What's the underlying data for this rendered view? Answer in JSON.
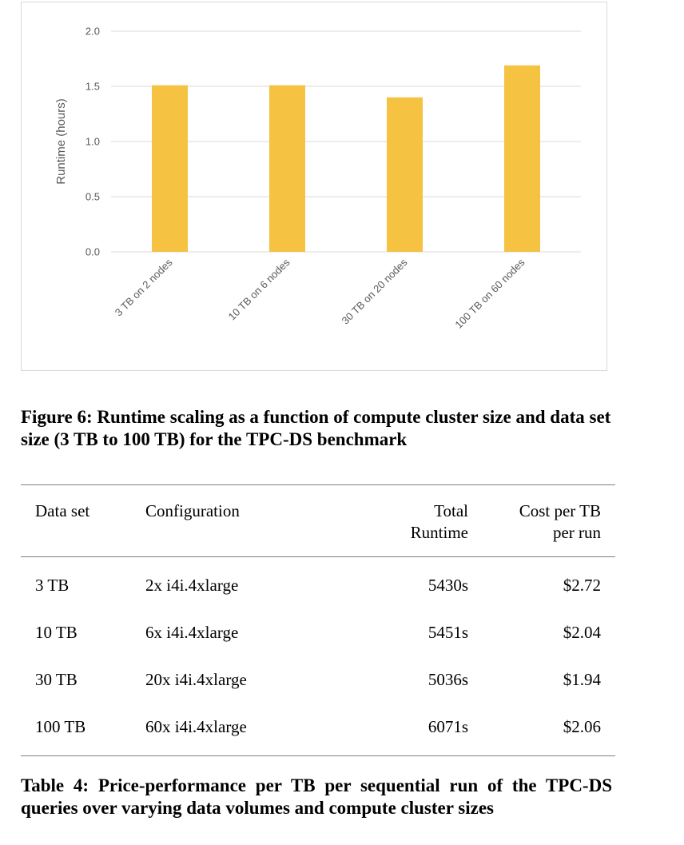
{
  "chart_data": {
    "type": "bar",
    "categories": [
      "3 TB on 2 nodes",
      "10 TB on 6 nodes",
      "30 TB on 20 nodes",
      "100 TB on 60 nodes"
    ],
    "values": [
      1.51,
      1.51,
      1.4,
      1.69
    ],
    "ylabel": "Runtime (hours)",
    "ylim": [
      0,
      2.0
    ],
    "yticks": [
      "0.0",
      "0.5",
      "1.0",
      "1.5",
      "2.0"
    ],
    "bar_color": "#f5c242",
    "grid": true
  },
  "figure_caption": "Figure 6: Runtime scaling as a function of compute cluster size and data set size (3 TB to 100 TB) for the TPC-DS benchmark",
  "table": {
    "headers": {
      "dataset": "Data set",
      "configuration": "Configuration",
      "runtime_line1": "Total",
      "runtime_line2": "Runtime",
      "cost_line1": "Cost per TB",
      "cost_line2": "per run"
    },
    "rows": [
      {
        "dataset": "3 TB",
        "configuration": "2x i4i.4xlarge",
        "runtime": "5430s",
        "cost": "$2.72"
      },
      {
        "dataset": "10 TB",
        "configuration": "6x i4i.4xlarge",
        "runtime": "5451s",
        "cost": "$2.04"
      },
      {
        "dataset": "30 TB",
        "configuration": "20x i4i.4xlarge",
        "runtime": "5036s",
        "cost": "$1.94"
      },
      {
        "dataset": "100 TB",
        "configuration": "60x i4i.4xlarge",
        "runtime": "6071s",
        "cost": "$2.06"
      }
    ]
  },
  "table_caption": "Table 4: Price-performance per TB per sequential run of the TPC-DS queries over varying data volumes and compute cluster sizes"
}
